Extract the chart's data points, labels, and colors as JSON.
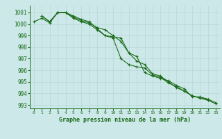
{
  "xlabel": "Graphe pression niveau de la mer (hPa)",
  "background_color": "#cde8e8",
  "grid_color": "#b8d8d8",
  "line_color": "#1a6b1a",
  "xlim": [
    -0.5,
    23.5
  ],
  "ylim": [
    992.7,
    1001.6
  ],
  "yticks": [
    993,
    994,
    995,
    996,
    997,
    998,
    999,
    1000,
    1001
  ],
  "xticks": [
    0,
    1,
    2,
    3,
    4,
    5,
    6,
    7,
    8,
    9,
    10,
    11,
    12,
    13,
    14,
    15,
    16,
    17,
    18,
    19,
    20,
    21,
    22,
    23
  ],
  "series": [
    {
      "x": [
        0,
        1,
        2,
        3,
        4,
        5,
        6,
        7,
        8,
        9,
        10,
        11,
        12,
        13,
        14,
        15,
        16,
        17,
        18,
        19,
        20,
        21,
        22
      ],
      "y": [
        1000.2,
        1000.5,
        1000.1,
        1001.0,
        1001.0,
        1000.7,
        1000.4,
        1000.2,
        999.6,
        999.0,
        998.9,
        998.8,
        997.5,
        997.2,
        995.8,
        995.5,
        995.3,
        995.1,
        994.7,
        994.4,
        993.7,
        993.7,
        993.5
      ]
    },
    {
      "x": [
        1,
        2,
        3,
        4,
        5,
        6,
        7,
        8,
        9,
        10,
        11,
        12,
        13,
        14,
        15,
        16,
        17,
        18,
        19,
        20,
        21,
        22,
        23
      ],
      "y": [
        1000.7,
        1000.2,
        1001.0,
        1001.0,
        1000.5,
        1000.2,
        1000.0,
        999.5,
        999.0,
        998.8,
        997.0,
        996.5,
        996.3,
        996.2,
        995.6,
        995.4,
        994.9,
        994.6,
        994.2,
        993.8,
        993.6,
        993.5,
        993.2
      ]
    },
    {
      "x": [
        1,
        2,
        3,
        4,
        5,
        6,
        7,
        8,
        9,
        10,
        11,
        12,
        13,
        14,
        15,
        16,
        17,
        18,
        19,
        20,
        21,
        22,
        23
      ],
      "y": [
        1000.7,
        1000.2,
        1001.0,
        1001.0,
        1000.6,
        1000.3,
        1000.1,
        999.7,
        999.5,
        999.0,
        998.5,
        997.5,
        996.8,
        996.5,
        995.7,
        995.5,
        995.0,
        994.5,
        994.2,
        993.8,
        993.6,
        993.4,
        993.1
      ]
    }
  ]
}
